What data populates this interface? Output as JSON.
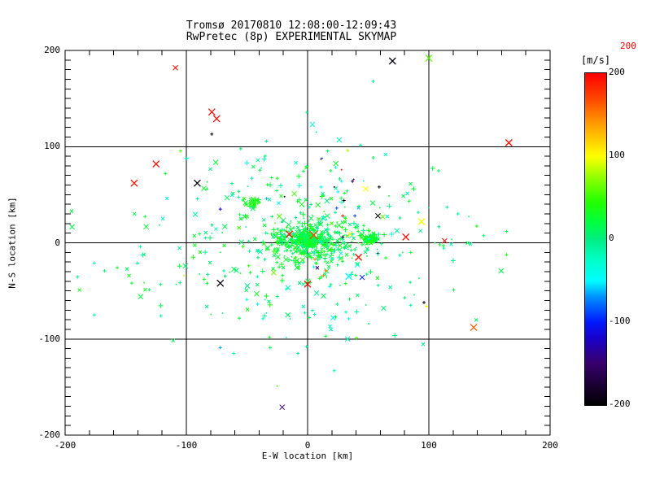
{
  "chart_data": {
    "type": "scatter",
    "title": "Tromsø 20170810 12:08:00-12:09:43",
    "subtitle": "RwPretec (8p) EXPERIMENTAL SKYMAP",
    "xlabel": "E-W location [km]",
    "ylabel": "N-S location [km]",
    "xlim": [
      -200,
      200
    ],
    "ylim": [
      -200,
      200
    ],
    "x_ticks": [
      -200,
      -100,
      0,
      100,
      200
    ],
    "y_ticks": [
      -200,
      -100,
      0,
      100,
      200
    ],
    "x_minor_step": 20,
    "y_minor_step": 10,
    "grid": true,
    "axis_color": "#000000",
    "background": "#ffffff",
    "colorbar": {
      "unit": "[m/s]",
      "min": -200,
      "max": 200,
      "ticks": [
        200,
        100,
        0,
        -100,
        -200
      ],
      "top_label": {
        "text": "200",
        "color": "#ff0000"
      },
      "stops": [
        {
          "v": -200,
          "c": "#000000"
        },
        {
          "v": -150,
          "c": "#38006b"
        },
        {
          "v": -120,
          "c": "#1a00c8"
        },
        {
          "v": -100,
          "c": "#0018ff"
        },
        {
          "v": -70,
          "c": "#0090ff"
        },
        {
          "v": -50,
          "c": "#00ffff"
        },
        {
          "v": -25,
          "c": "#00ffc8"
        },
        {
          "v": 0,
          "c": "#00ee82"
        },
        {
          "v": 20,
          "c": "#00ff40"
        },
        {
          "v": 45,
          "c": "#22ff00"
        },
        {
          "v": 70,
          "c": "#7fff00"
        },
        {
          "v": 100,
          "c": "#ffff00"
        },
        {
          "v": 140,
          "c": "#ff9900"
        },
        {
          "v": 170,
          "c": "#ff4400"
        },
        {
          "v": 200,
          "c": "#ff0000"
        }
      ]
    },
    "clusters": [
      {
        "name": "core",
        "n": 360,
        "cx": 2,
        "cy": 2,
        "sx": 17,
        "sy": 12,
        "vm": 18,
        "vs": 16,
        "seed": 11,
        "mix": [
          0.5,
          0.85
        ]
      },
      {
        "name": "hotspot-0-0",
        "n": 150,
        "cx": 0,
        "cy": 4,
        "sx": 4,
        "sy": 3.6,
        "vm": 24,
        "vs": 9,
        "seed": 22,
        "mix": [
          0.6,
          0.9
        ]
      },
      {
        "name": "hotspot-50-5",
        "n": 85,
        "cx": 52,
        "cy": 5,
        "sx": 4,
        "sy": 3,
        "vm": 26,
        "vs": 8,
        "seed": 33,
        "mix": [
          0.6,
          0.9
        ]
      },
      {
        "name": "clump--45-41",
        "n": 30,
        "cx": -45,
        "cy": 41,
        "sx": 3.2,
        "sy": 2.8,
        "vm": 34,
        "vs": 9,
        "seed": 44,
        "mix": [
          0.35,
          0.9
        ]
      },
      {
        "name": "broad-field",
        "n": 270,
        "cx": -15,
        "cy": -6,
        "sx": 72,
        "sy": 40,
        "vm": 8,
        "vs": 22,
        "seed": 55,
        "mix": [
          0.45,
          0.85
        ]
      },
      {
        "name": "upper-band",
        "n": 40,
        "cx": 5,
        "cy": 60,
        "sx": 42,
        "sy": 22,
        "vm": 5,
        "vs": 28,
        "seed": 66,
        "mix": [
          0.5,
          0.85
        ]
      },
      {
        "name": "lower-tail",
        "n": 22,
        "cx": 0,
        "cy": -62,
        "sx": 40,
        "sy": 26,
        "vm": -2,
        "vs": 20,
        "seed": 77,
        "mix": [
          0.5,
          0.85
        ]
      }
    ],
    "outliers": [
      [
        -109,
        182,
        195,
        "x",
        3
      ],
      [
        -79,
        136,
        195,
        "x",
        4
      ],
      [
        -75,
        129,
        195,
        "x",
        4
      ],
      [
        -125,
        82,
        195,
        "x",
        4
      ],
      [
        -143,
        62,
        195,
        "x",
        4
      ],
      [
        166,
        104,
        195,
        "x",
        4
      ],
      [
        81,
        6,
        195,
        "x",
        4
      ],
      [
        113,
        2,
        195,
        "x",
        3
      ],
      [
        -15,
        9,
        195,
        "x",
        4
      ],
      [
        42,
        -15,
        195,
        "x",
        4
      ],
      [
        0,
        -43,
        195,
        "x",
        4
      ],
      [
        29,
        28,
        190,
        "+",
        2
      ],
      [
        28,
        76,
        190,
        "+",
        1
      ],
      [
        5,
        8,
        170,
        "x",
        5
      ],
      [
        137,
        -88,
        160,
        "x",
        4
      ],
      [
        15,
        -29,
        155,
        "+",
        2
      ],
      [
        13,
        -34,
        150,
        "+",
        2
      ],
      [
        6,
        -17,
        150,
        "+",
        2
      ],
      [
        94,
        22,
        100,
        "x",
        4
      ],
      [
        35,
        9,
        100,
        "x",
        3
      ],
      [
        48,
        56,
        100,
        "x",
        3
      ],
      [
        98,
        -66,
        95,
        "+",
        2
      ],
      [
        -102,
        -34,
        92,
        "+",
        1
      ],
      [
        33,
        96,
        80,
        "+",
        2
      ],
      [
        100,
        192,
        60,
        "x",
        4
      ],
      [
        62,
        27,
        60,
        "x",
        3
      ],
      [
        -11,
        51,
        55,
        "x",
        3
      ],
      [
        -28,
        -31,
        65,
        "x",
        3
      ],
      [
        -25,
        -149,
        60,
        "+",
        1
      ],
      [
        -79,
        113,
        -195,
        "+",
        2
      ],
      [
        -91,
        62,
        -200,
        "x",
        4
      ],
      [
        70,
        189,
        -195,
        "x",
        4
      ],
      [
        -72,
        -42,
        -195,
        "x",
        4
      ],
      [
        59,
        58,
        -195,
        "+",
        2
      ],
      [
        30,
        44,
        -195,
        "+",
        2
      ],
      [
        58,
        28,
        -195,
        "x",
        3
      ],
      [
        -19,
        48,
        -200,
        "+",
        1
      ],
      [
        96,
        -62,
        -195,
        "+",
        2
      ],
      [
        58,
        -11,
        -195,
        "+",
        1
      ],
      [
        11,
        87,
        -160,
        "+",
        1
      ],
      [
        29,
        6,
        -155,
        "+",
        2
      ],
      [
        37,
        64,
        -165,
        "+",
        2
      ],
      [
        22,
        58,
        -170,
        "+",
        1
      ],
      [
        8,
        -26,
        -150,
        "x",
        2
      ],
      [
        -21,
        -171,
        -145,
        "x",
        3
      ],
      [
        38,
        66,
        -160,
        "+",
        1
      ],
      [
        24,
        36,
        -85,
        "+",
        2
      ],
      [
        39,
        28,
        -90,
        "+",
        2
      ],
      [
        45,
        -36,
        -100,
        "x",
        3
      ],
      [
        -72,
        35,
        -115,
        "+",
        2
      ],
      [
        -72,
        -109,
        -65,
        "+",
        2
      ],
      [
        12,
        88,
        -90,
        "+",
        1
      ],
      [
        34,
        -35,
        -45,
        "x",
        4
      ],
      [
        41,
        -23,
        -45,
        "x",
        3
      ],
      [
        21,
        -78,
        -45,
        "x",
        3
      ],
      [
        28,
        64,
        -50,
        "+",
        2
      ],
      [
        11,
        58,
        -50,
        "+",
        2
      ],
      [
        25,
        53,
        -50,
        "+",
        2
      ],
      [
        4,
        123,
        -35,
        "x",
        3
      ],
      [
        26,
        107,
        -20,
        "x",
        3
      ],
      [
        54,
        168,
        -5,
        "+",
        2
      ],
      [
        19,
        75,
        25,
        "+",
        2
      ],
      [
        -25,
        67,
        30,
        "+",
        2
      ],
      [
        -46,
        67,
        -10,
        "+",
        2
      ],
      [
        115,
        37,
        -10,
        "+",
        2
      ],
      [
        124,
        30,
        -12,
        "+",
        2
      ],
      [
        112,
        -3,
        25,
        "+",
        2
      ],
      [
        105,
        0,
        30,
        "+",
        1
      ],
      [
        76,
        -13,
        -10,
        "+",
        2
      ],
      [
        85,
        -10,
        30,
        "+",
        2
      ],
      [
        109,
        -2,
        25,
        "+",
        2
      ],
      [
        85,
        -65,
        -15,
        "+",
        2
      ],
      [
        -61,
        -115,
        -18,
        "+",
        2
      ],
      [
        -1,
        -108,
        -15,
        "+",
        2
      ],
      [
        -8,
        -115,
        -10,
        "+",
        2
      ],
      [
        22,
        -133,
        -20,
        "+",
        2
      ],
      [
        -31,
        -109,
        20,
        "+",
        2
      ],
      [
        33,
        -100,
        -20,
        "x",
        3
      ],
      [
        -176,
        -21,
        -18,
        "+",
        2
      ],
      [
        -157,
        -26,
        25,
        "+",
        2
      ],
      [
        -176,
        -75,
        -15,
        "+",
        2
      ],
      [
        -83,
        56,
        25,
        "+",
        2
      ],
      [
        -42,
        -53,
        30,
        "x",
        3
      ],
      [
        -138,
        -4,
        -12,
        "+",
        2
      ],
      [
        -145,
        -42,
        22,
        "+",
        2
      ],
      [
        -121,
        -76,
        -10,
        "+",
        2
      ]
    ]
  }
}
